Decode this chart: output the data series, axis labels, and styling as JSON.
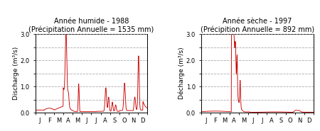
{
  "left_title_line1": "Année humide - 1988",
  "left_title_line2": "(Précipitation Annuelle = 1535 mm)",
  "right_title_line1": "Année sèche - 1997",
  "right_title_line2": "(Précipition Annuelle = 892 mm)",
  "left_ylabel": "Discharge (m³/s)",
  "right_ylabel": "Décharge (m³/s)",
  "months": [
    "J",
    "F",
    "M",
    "A",
    "M",
    "J",
    "J",
    "A",
    "S",
    "O",
    "N",
    "D"
  ],
  "ylim": [
    0,
    3.0
  ],
  "yticks": [
    0.0,
    0.5,
    1.0,
    1.5,
    2.0,
    2.5,
    3.0
  ],
  "ytick_labels": [
    "0.0",
    "",
    "1.0",
    "",
    "2.0",
    "",
    "3.0"
  ],
  "background_color": "#ffffff",
  "line_color": "#cc0000",
  "grid_color": "#999999",
  "title_fontsize": 7.0,
  "label_fontsize": 6.5,
  "tick_fontsize": 6.0
}
